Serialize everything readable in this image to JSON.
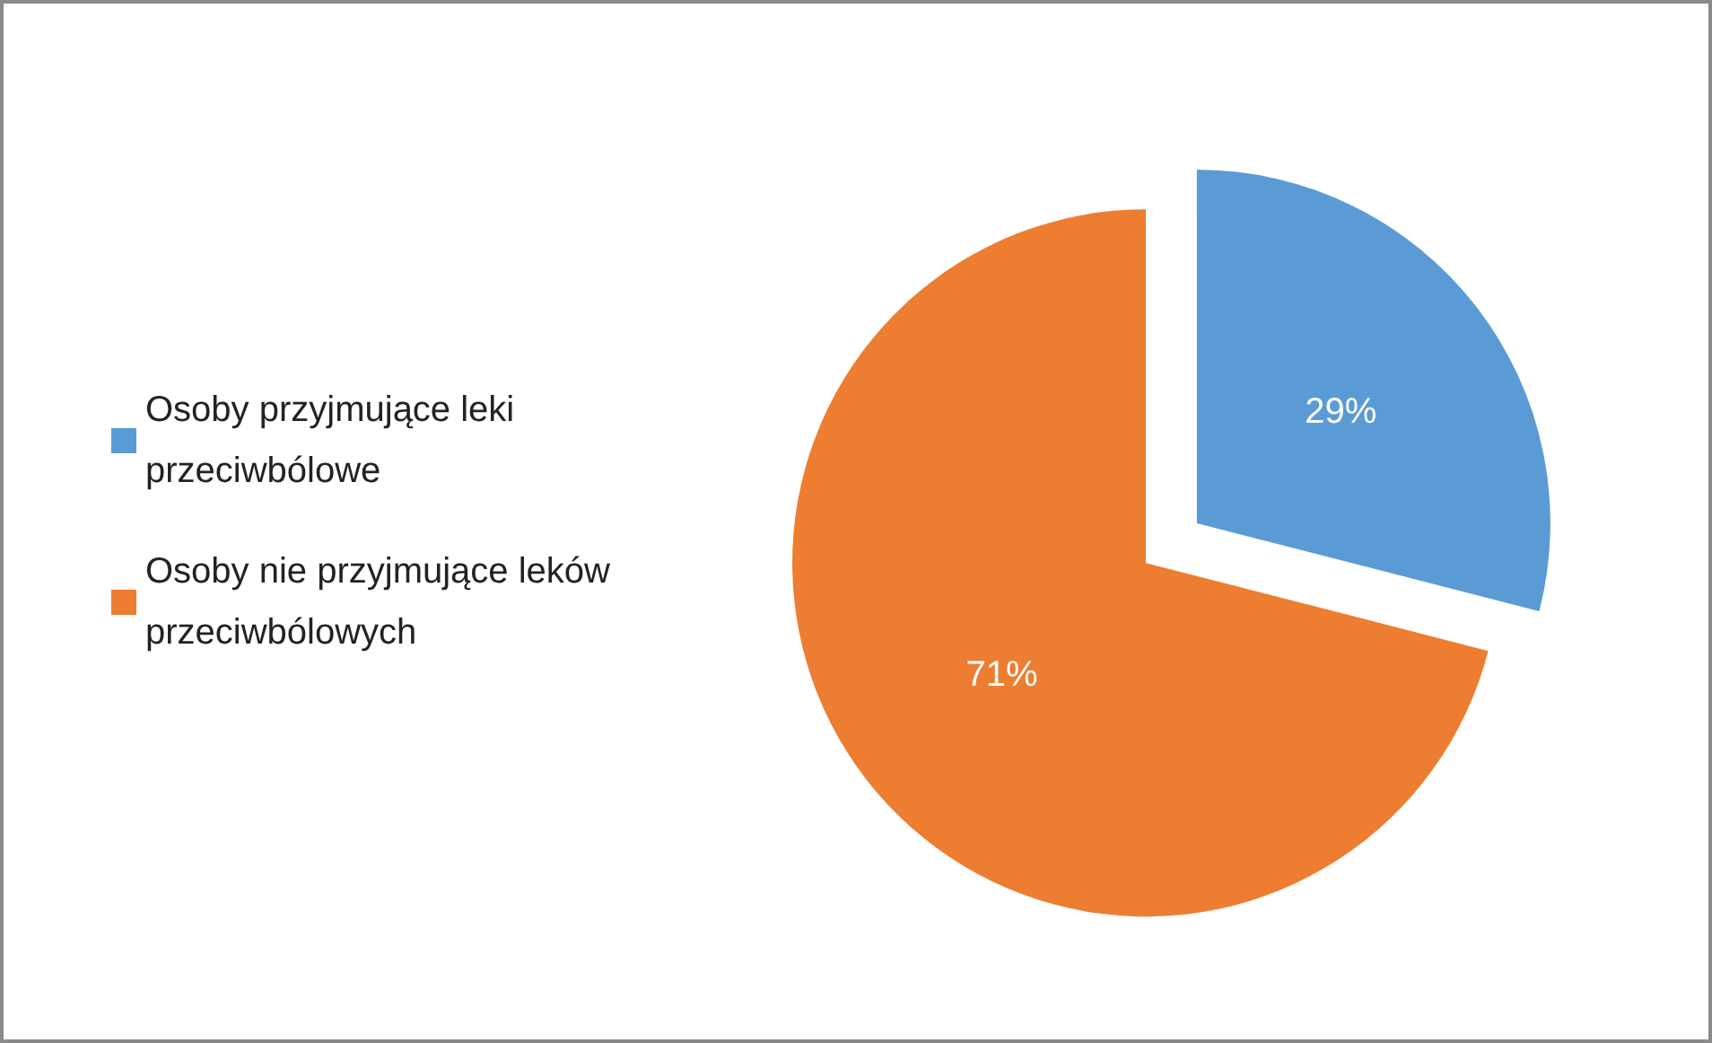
{
  "chart_data": {
    "type": "pie",
    "categories": [
      "Osoby przyjmujące leki przeciwbólowe",
      "Osoby nie przyjmujące leków przeciwbólowych"
    ],
    "values": [
      29,
      71
    ],
    "colors": [
      "#5b9bd5",
      "#ed7d31"
    ],
    "value_labels": [
      "29%",
      "71%"
    ],
    "legend": "left"
  }
}
